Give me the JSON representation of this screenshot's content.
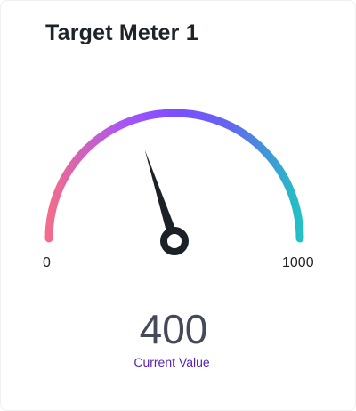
{
  "card": {
    "title": "Target Meter 1"
  },
  "gauge": {
    "min_label": "0",
    "max_label": "1000",
    "min": 0,
    "max": 1000,
    "value": 400,
    "value_text": "400",
    "value_caption": "Current Value",
    "gradient": [
      "#f26d8a",
      "#a855f7",
      "#7c4dff",
      "#6366f1",
      "#22c1c3"
    ],
    "needle_color": "#1b2127",
    "caption_color": "#5b21b6"
  }
}
